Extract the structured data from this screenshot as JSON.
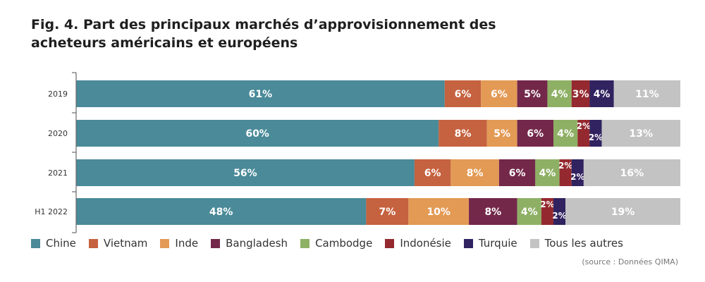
{
  "title": {
    "line1": "Fig. 4. Part des principaux marchés d’approvisionnement des",
    "line2": "acheteurs américains et européens"
  },
  "source": "(source : Données QIMA)",
  "chart_data": {
    "type": "bar",
    "orientation": "horizontal",
    "stacked": true,
    "categories": [
      "2019",
      "2020",
      "2021",
      "H1 2022"
    ],
    "series": [
      {
        "name": "Chine",
        "color": "#4a8a99",
        "values": [
          61,
          60,
          56,
          48
        ]
      },
      {
        "name": "Vietnam",
        "color": "#c5623f",
        "values": [
          6,
          8,
          6,
          7
        ]
      },
      {
        "name": "Inde",
        "color": "#e39a55",
        "values": [
          6,
          5,
          8,
          10
        ]
      },
      {
        "name": "Bangladesh",
        "color": "#73284a",
        "values": [
          5,
          6,
          6,
          8
        ]
      },
      {
        "name": "Cambodge",
        "color": "#8eb065",
        "values": [
          4,
          4,
          4,
          4
        ]
      },
      {
        "name": "Indonésie",
        "color": "#94292f",
        "values": [
          3,
          2,
          2,
          2
        ]
      },
      {
        "name": "Turquie",
        "color": "#302360",
        "values": [
          4,
          2,
          2,
          2
        ]
      },
      {
        "name": "Tous les autres",
        "color": "#c3c3c3",
        "values": [
          11,
          13,
          16,
          19
        ]
      }
    ],
    "xlim": [
      0,
      100
    ],
    "unit": "%",
    "legend_position": "bottom"
  }
}
